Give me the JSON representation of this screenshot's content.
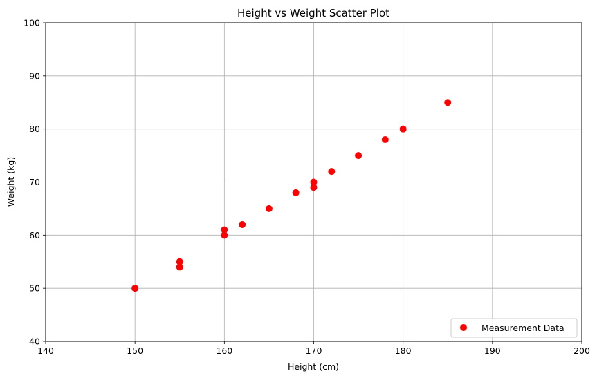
{
  "chart_data": {
    "type": "scatter",
    "title": "Height vs Weight Scatter Plot",
    "xlabel": "Height (cm)",
    "ylabel": "Weight (kg)",
    "xlim": [
      140,
      200
    ],
    "ylim": [
      40,
      100
    ],
    "xticks": [
      140,
      150,
      160,
      170,
      180,
      190,
      200
    ],
    "yticks": [
      40,
      50,
      60,
      70,
      80,
      90,
      100
    ],
    "grid": true,
    "legend_position": "bottom-right",
    "series": [
      {
        "name": "Measurement Data",
        "color": "#ff0000",
        "points": [
          {
            "x": 150,
            "y": 50
          },
          {
            "x": 155,
            "y": 55
          },
          {
            "x": 155,
            "y": 54
          },
          {
            "x": 160,
            "y": 61
          },
          {
            "x": 160,
            "y": 60
          },
          {
            "x": 162,
            "y": 62
          },
          {
            "x": 165,
            "y": 65
          },
          {
            "x": 168,
            "y": 68
          },
          {
            "x": 170,
            "y": 70
          },
          {
            "x": 170,
            "y": 69
          },
          {
            "x": 172,
            "y": 72
          },
          {
            "x": 175,
            "y": 75
          },
          {
            "x": 178,
            "y": 78
          },
          {
            "x": 180,
            "y": 80
          },
          {
            "x": 185,
            "y": 85
          }
        ]
      }
    ]
  }
}
